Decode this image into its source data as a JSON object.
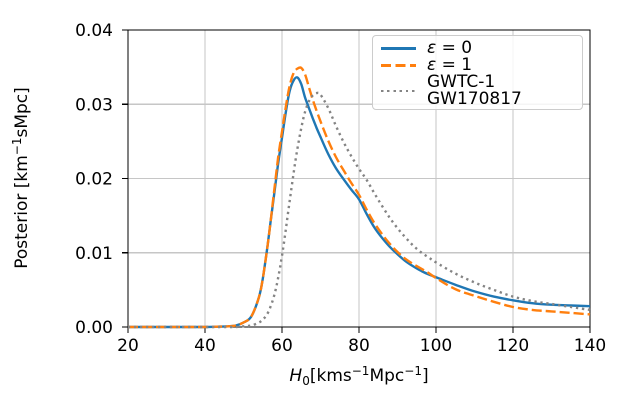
{
  "figure": {
    "background": "#ffffff",
    "axis_color": "#000000",
    "grid_color": "#c6c6c6",
    "legend_border_color": "#cccccc"
  },
  "labels": {
    "ylabel": {
      "pre": "Posterior [km",
      "sup": "−1",
      "post": "sMpc]"
    },
    "xlabel": {
      "var": "H",
      "sub": "0",
      "a": "[kms",
      "sup1": "−1",
      "b": "Mpc",
      "sup2": "−1",
      "c": "]"
    }
  },
  "chart_data": {
    "type": "line",
    "title": "",
    "xlabel": "H_0 [km s^-1 Mpc^-1]",
    "ylabel": "Posterior [km^-1 s Mpc]",
    "xlim": [
      20,
      140
    ],
    "ylim": [
      0.0,
      0.04
    ],
    "xticks": [
      20,
      40,
      60,
      80,
      100,
      120,
      140
    ],
    "yticks": [
      0.0,
      0.01,
      0.02,
      0.03,
      0.04
    ],
    "ytick_labels": [
      "0.00",
      "0.01",
      "0.02",
      "0.03",
      "0.04"
    ],
    "grid": true,
    "legend_position": "upper right",
    "x": [
      20,
      30,
      40,
      44,
      46,
      48,
      50,
      52,
      54,
      55,
      56,
      57,
      58,
      59,
      60,
      61,
      62,
      63,
      64,
      65,
      66,
      67,
      68,
      69,
      70,
      72,
      74,
      76,
      78,
      80,
      82,
      84,
      86,
      88,
      90,
      92,
      94,
      96,
      98,
      100,
      105,
      110,
      115,
      120,
      125,
      130,
      135,
      140
    ],
    "series": [
      {
        "label": "ε = 0",
        "color": "#1f77b4",
        "style": "solid",
        "values": [
          0,
          0,
          0,
          5e-05,
          0.0001,
          0.0002,
          0.0006,
          0.0014,
          0.004,
          0.0065,
          0.01,
          0.014,
          0.018,
          0.022,
          0.0255,
          0.029,
          0.0318,
          0.0332,
          0.0336,
          0.0327,
          0.0309,
          0.0295,
          0.0281,
          0.0268,
          0.0256,
          0.0233,
          0.0214,
          0.0199,
          0.0185,
          0.0172,
          0.0152,
          0.0134,
          0.012,
          0.0108,
          0.0098,
          0.0089,
          0.0082,
          0.0076,
          0.0071,
          0.0067,
          0.0057,
          0.0048,
          0.0041,
          0.0036,
          0.0032,
          0.003,
          0.0029,
          0.0028
        ]
      },
      {
        "label": "ε = 1",
        "color": "#ff7f0e",
        "style": "dashed",
        "values": [
          0,
          0,
          0,
          5e-05,
          0.0001,
          0.0002,
          0.0006,
          0.0014,
          0.004,
          0.0065,
          0.01,
          0.014,
          0.0185,
          0.0228,
          0.0263,
          0.0297,
          0.0325,
          0.0342,
          0.0348,
          0.0349,
          0.034,
          0.0323,
          0.0306,
          0.0291,
          0.0277,
          0.0251,
          0.0229,
          0.0211,
          0.0194,
          0.0178,
          0.0158,
          0.014,
          0.0125,
          0.0112,
          0.0101,
          0.0092,
          0.0085,
          0.0079,
          0.0073,
          0.0066,
          0.0051,
          0.0042,
          0.0034,
          0.0027,
          0.0023,
          0.0021,
          0.0019,
          0.0017
        ]
      },
      {
        "label": "GWTC-1 GW170817",
        "color": "#848484",
        "style": "dotted",
        "values": [
          0,
          0,
          0,
          0,
          0,
          0,
          0.0001,
          0.0002,
          0.0006,
          0.001,
          0.0016,
          0.0027,
          0.0043,
          0.0066,
          0.0096,
          0.0132,
          0.017,
          0.0207,
          0.024,
          0.0268,
          0.029,
          0.0304,
          0.0312,
          0.0315,
          0.0313,
          0.0295,
          0.0271,
          0.0249,
          0.023,
          0.0213,
          0.0198,
          0.018,
          0.0163,
          0.0147,
          0.0133,
          0.0121,
          0.011,
          0.0101,
          0.0094,
          0.0087,
          0.0072,
          0.006,
          0.005,
          0.0041,
          0.0035,
          0.0031,
          0.0027,
          0.0023
        ]
      }
    ]
  }
}
